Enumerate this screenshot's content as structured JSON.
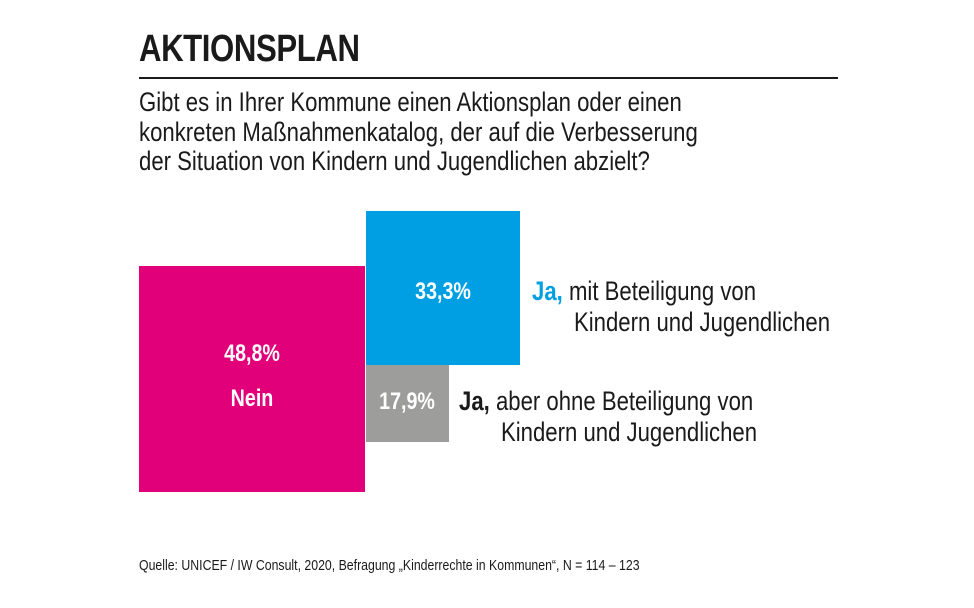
{
  "chart_data": {
    "type": "area-proportional squares",
    "title": "AKTIONSPLAN",
    "subtitle": [
      "Gibt es in Ihrer Kommune einen Aktionsplan oder einen",
      "konkreten Maßnahmenkatalog, der auf die Verbesserung",
      "der Situation von Kindern und Jugendlichen abzielt?"
    ],
    "series": [
      {
        "value": 48.8,
        "value_label": "48,8%",
        "name": "Nein",
        "color": "#e2007a"
      },
      {
        "value": 33.3,
        "value_label": "33,3%",
        "lead": "Ja,",
        "name": [
          "mit Beteiligung von",
          "Kindern und Jugendlichen"
        ],
        "color": "#009fe3",
        "lead_color": "#009fe3"
      },
      {
        "value": 17.9,
        "value_label": "17,9%",
        "lead": "Ja,",
        "name": [
          "aber ohne Beteiligung von",
          "Kindern und Jugendlichen"
        ],
        "color": "#9d9d9c",
        "lead_color": "#1a1a1a"
      }
    ],
    "source": "Quelle: UNICEF / IW Consult, 2020, Befragung „Kinderrechte in Kommunen“, N = 114 – 123"
  }
}
